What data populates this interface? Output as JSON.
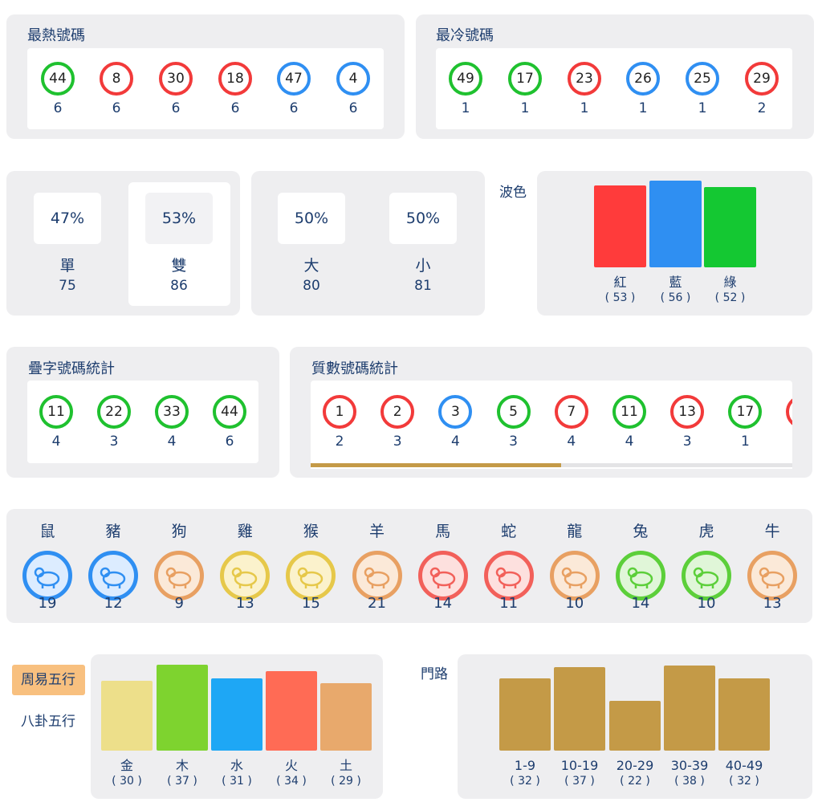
{
  "hot": {
    "title": "最熱號碼",
    "balls": [
      {
        "number": 44,
        "color": "green",
        "count": 6
      },
      {
        "number": 8,
        "color": "red",
        "count": 6
      },
      {
        "number": 30,
        "color": "red",
        "count": 6
      },
      {
        "number": 18,
        "color": "red",
        "count": 6
      },
      {
        "number": 47,
        "color": "blue",
        "count": 6
      },
      {
        "number": 4,
        "color": "blue",
        "count": 6
      }
    ]
  },
  "cold": {
    "title": "最冷號碼",
    "balls": [
      {
        "number": 49,
        "color": "green",
        "count": 1
      },
      {
        "number": 17,
        "color": "green",
        "count": 1
      },
      {
        "number": 23,
        "color": "red",
        "count": 1
      },
      {
        "number": 26,
        "color": "blue",
        "count": 1
      },
      {
        "number": 25,
        "color": "blue",
        "count": 1
      },
      {
        "number": 29,
        "color": "red",
        "count": 2
      }
    ]
  },
  "odd_even": [
    {
      "percent": "47%",
      "label": "單",
      "count": 75
    },
    {
      "percent": "53%",
      "label": "雙",
      "count": 86,
      "selected": true
    }
  ],
  "big_small": [
    {
      "percent": "50%",
      "label": "大",
      "count": 80
    },
    {
      "percent": "50%",
      "label": "小",
      "count": 81
    }
  ],
  "wave": {
    "title": "波色",
    "categories": [
      "紅",
      "藍",
      "綠"
    ],
    "values": [
      53,
      56,
      52
    ],
    "value_labels": [
      "( 53 )",
      "( 56 )",
      "( 52 )"
    ],
    "colors": [
      "#ff3b3b",
      "#2f8ff2",
      "#14c832"
    ]
  },
  "repeat": {
    "title": "疊字號碼統計",
    "balls": [
      {
        "number": 11,
        "color": "green",
        "count": 4
      },
      {
        "number": 22,
        "color": "green",
        "count": 3
      },
      {
        "number": 33,
        "color": "green",
        "count": 4
      },
      {
        "number": 44,
        "color": "green",
        "count": 6
      }
    ]
  },
  "prime": {
    "title": "質數號碼統計",
    "balls": [
      {
        "number": 1,
        "color": "red",
        "count": 2
      },
      {
        "number": 2,
        "color": "red",
        "count": 3
      },
      {
        "number": 3,
        "color": "blue",
        "count": 4
      },
      {
        "number": 5,
        "color": "green",
        "count": 3
      },
      {
        "number": 7,
        "color": "red",
        "count": 4
      },
      {
        "number": 11,
        "color": "green",
        "count": 4
      },
      {
        "number": 13,
        "color": "red",
        "count": 3
      },
      {
        "number": 17,
        "color": "green",
        "count": 1
      }
    ]
  },
  "zodiac": [
    {
      "name": "鼠",
      "color": "blue",
      "count": 19
    },
    {
      "name": "豬",
      "color": "blue",
      "count": 12
    },
    {
      "name": "狗",
      "color": "orange",
      "count": 9
    },
    {
      "name": "雞",
      "color": "yellow",
      "count": 13
    },
    {
      "name": "猴",
      "color": "yellow",
      "count": 15
    },
    {
      "name": "羊",
      "color": "orange",
      "count": 21
    },
    {
      "name": "馬",
      "color": "red",
      "count": 14
    },
    {
      "name": "蛇",
      "color": "red",
      "count": 11
    },
    {
      "name": "龍",
      "color": "orange",
      "count": 10
    },
    {
      "name": "兔",
      "color": "green",
      "count": 14
    },
    {
      "name": "虎",
      "color": "green",
      "count": 10
    },
    {
      "name": "牛",
      "color": "orange",
      "count": 13
    }
  ],
  "five_elements": {
    "tabs": [
      "周易五行",
      "八卦五行"
    ],
    "active_tab": 0,
    "categories": [
      "金",
      "木",
      "水",
      "火",
      "土"
    ],
    "values": [
      30,
      37,
      31,
      34,
      29
    ],
    "value_labels": [
      "( 30 )",
      "( 37 )",
      "( 31 )",
      "( 34 )",
      "( 29 )"
    ],
    "colors": [
      "#eddf8a",
      "#7ed32f",
      "#1ea7f5",
      "#ff6b55",
      "#e8a96c"
    ]
  },
  "routes": {
    "title": "門路",
    "categories": [
      "1-9",
      "10-19",
      "20-29",
      "30-39",
      "40-49"
    ],
    "values": [
      32,
      37,
      22,
      38,
      32
    ],
    "value_labels": [
      "( 32 )",
      "( 37 )",
      "( 22 )",
      "( 38 )",
      "( 32 )"
    ],
    "color": "#c49a47"
  }
}
